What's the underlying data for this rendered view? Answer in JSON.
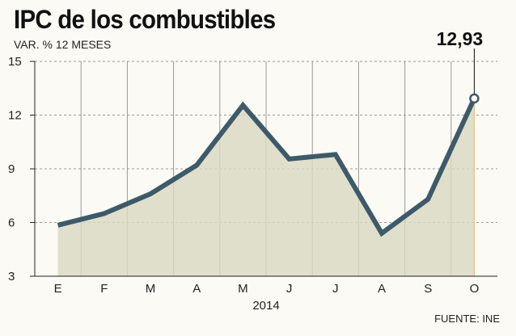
{
  "header": {
    "title": "IPC de los combustibles",
    "subtitle": "VAR. % 12 MESES"
  },
  "footer": {
    "source": "FUENTE: INE"
  },
  "colors": {
    "line": "#3e5a6a",
    "area_fill": "#d8d8c2",
    "grid_vertical": "#9a9a9a",
    "grid_horizontal": "#9a9a9a",
    "highlight_line": "#e8c97a",
    "background": "#fbfaf4"
  },
  "chart_data": {
    "type": "area",
    "title": "IPC de los combustibles",
    "subtitle": "VAR. % 12 MESES",
    "categories": [
      "E",
      "F",
      "M",
      "A",
      "M",
      "J",
      "J",
      "A",
      "S",
      "O"
    ],
    "values": [
      5.85,
      6.5,
      7.6,
      9.2,
      12.55,
      9.55,
      9.8,
      5.4,
      7.3,
      12.93
    ],
    "xlabel": "2014",
    "ylabel": "",
    "ylim": [
      3,
      15
    ],
    "yticks": [
      3,
      6,
      9,
      12,
      15
    ],
    "grid": true,
    "annotation": {
      "label": "12,93",
      "category_index": 9,
      "value": 12.93
    },
    "source": "FUENTE: INE"
  }
}
